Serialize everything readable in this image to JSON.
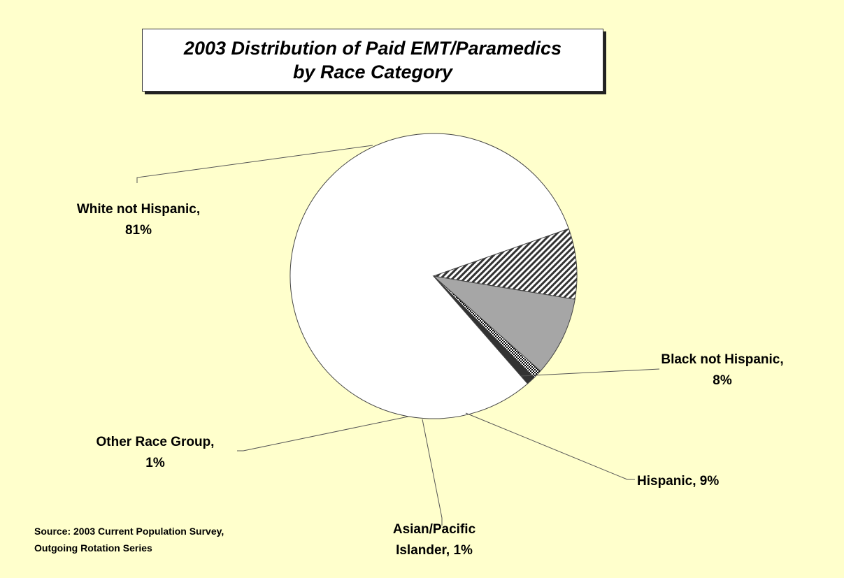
{
  "chart_data": {
    "type": "pie",
    "title_lines": [
      "2003 Distribution of Paid EMT/Paramedics",
      "by Race Category"
    ],
    "slices": [
      {
        "name": "White not Hispanic",
        "value": 81,
        "label_lines": [
          "White not Hispanic,",
          "81%"
        ],
        "fill": "#ffffff"
      },
      {
        "name": "Black not Hispanic",
        "value": 8,
        "label_lines": [
          "Black not Hispanic,",
          "8%"
        ],
        "fill": "url(#hatch)"
      },
      {
        "name": "Hispanic",
        "value": 9,
        "label_lines": [
          "Hispanic, 9%"
        ],
        "fill": "#a6a6a6"
      },
      {
        "name": "Asian/Pacific Islander",
        "value": 1,
        "label_lines": [
          "Asian/Pacific",
          "Islander, 1%"
        ],
        "fill": "url(#checker)"
      },
      {
        "name": "Other Race Group",
        "value": 1,
        "label_lines": [
          "Other Race Group,",
          "1%"
        ],
        "fill": "#333333"
      }
    ]
  },
  "source_lines": [
    "Source: 2003 Current Population Survey,",
    "Outgoing Rotation Series"
  ],
  "colors": {
    "background": "#ffffcc",
    "title_box": "#ffffff",
    "shadow": "#222222"
  }
}
